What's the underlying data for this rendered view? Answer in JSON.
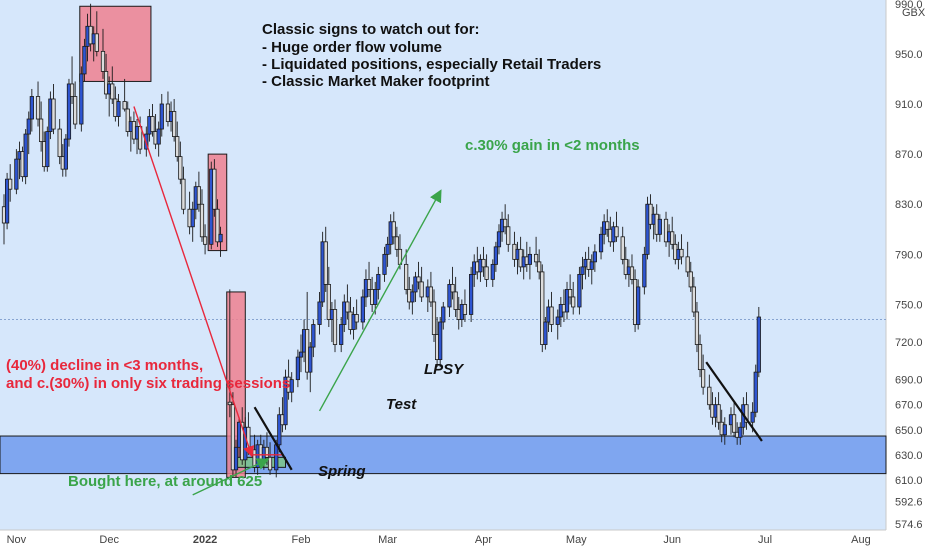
{
  "chart_data": {
    "type": "candlestick",
    "unit": "GBX",
    "ylim": [
      570,
      993
    ],
    "y_ticks": [
      "990.0",
      "950.0",
      "910.0",
      "870.0",
      "830.0",
      "790.0",
      "750.0",
      "720.0",
      "690.0",
      "670.0",
      "650.0",
      "630.0",
      "610.0",
      "592.6",
      "574.6"
    ],
    "x_ticks": [
      {
        "label": "Nov",
        "d": 4
      },
      {
        "label": "Dec",
        "d": 34
      },
      {
        "label": "2022",
        "d": 65
      },
      {
        "label": "Feb",
        "d": 96
      },
      {
        "label": "Mar",
        "d": 124
      },
      {
        "label": "Apr",
        "d": 155
      },
      {
        "label": "May",
        "d": 185
      },
      {
        "label": "Jun",
        "d": 216
      },
      {
        "label": "Jul",
        "d": 246
      },
      {
        "label": "Aug",
        "d": 277
      }
    ],
    "x_range": [
      0,
      278
    ],
    "price_line": 738,
    "support_zone": [
      615,
      645
    ],
    "colors": {
      "up": "#2e55d1",
      "down": "#dcdcdc",
      "bg": "#d6e7fb",
      "zone": "#7fa6f0",
      "box": "#ee808f",
      "green_box": "#7cc487",
      "red": "#e8283c",
      "green": "#3aa44a"
    },
    "candles": [
      [
        0,
        828,
        838,
        798,
        815
      ],
      [
        1,
        815,
        855,
        810,
        850
      ],
      [
        2,
        850,
        862,
        832,
        842
      ],
      [
        4,
        842,
        874,
        838,
        866
      ],
      [
        5,
        866,
        880,
        850,
        872
      ],
      [
        6,
        872,
        876,
        848,
        852
      ],
      [
        7,
        852,
        890,
        846,
        886
      ],
      [
        8,
        886,
        904,
        870,
        898
      ],
      [
        9,
        898,
        922,
        888,
        916
      ],
      [
        11,
        916,
        928,
        892,
        898
      ],
      [
        12,
        898,
        912,
        872,
        880
      ],
      [
        13,
        880,
        888,
        856,
        860
      ],
      [
        14,
        860,
        892,
        856,
        888
      ],
      [
        15,
        888,
        920,
        882,
        914
      ],
      [
        16,
        914,
        926,
        886,
        890
      ],
      [
        18,
        890,
        898,
        862,
        868
      ],
      [
        19,
        868,
        878,
        852,
        858
      ],
      [
        20,
        858,
        886,
        852,
        882
      ],
      [
        21,
        882,
        930,
        876,
        926
      ],
      [
        22,
        926,
        948,
        910,
        916
      ],
      [
        23,
        916,
        928,
        890,
        894
      ],
      [
        25,
        894,
        940,
        888,
        934
      ],
      [
        26,
        934,
        962,
        928,
        956
      ],
      [
        27,
        956,
        982,
        944,
        972
      ],
      [
        28,
        972,
        990,
        952,
        958
      ],
      [
        29,
        958,
        972,
        944,
        966
      ],
      [
        30,
        966,
        984,
        948,
        952
      ],
      [
        32,
        952,
        970,
        930,
        936
      ],
      [
        33,
        936,
        950,
        914,
        918
      ],
      [
        34,
        918,
        932,
        900,
        926
      ],
      [
        35,
        926,
        940,
        910,
        914
      ],
      [
        36,
        914,
        924,
        896,
        900
      ],
      [
        37,
        900,
        918,
        892,
        912
      ],
      [
        39,
        912,
        930,
        904,
        906
      ],
      [
        40,
        906,
        912,
        884,
        888
      ],
      [
        41,
        888,
        900,
        872,
        896
      ],
      [
        42,
        896,
        904,
        878,
        882
      ],
      [
        43,
        882,
        898,
        870,
        892
      ],
      [
        44,
        892,
        900,
        870,
        874
      ],
      [
        46,
        874,
        892,
        868,
        886
      ],
      [
        47,
        886,
        906,
        880,
        900
      ],
      [
        48,
        900,
        910,
        884,
        888
      ],
      [
        49,
        888,
        902,
        874,
        878
      ],
      [
        50,
        878,
        896,
        868,
        890
      ],
      [
        51,
        890,
        918,
        884,
        910
      ],
      [
        53,
        910,
        920,
        892,
        896
      ],
      [
        54,
        896,
        912,
        888,
        904
      ],
      [
        55,
        904,
        914,
        880,
        884
      ],
      [
        56,
        884,
        896,
        864,
        868
      ],
      [
        57,
        868,
        880,
        846,
        850
      ],
      [
        58,
        850,
        860,
        822,
        826
      ],
      [
        60,
        826,
        840,
        806,
        812
      ],
      [
        61,
        812,
        832,
        800,
        826
      ],
      [
        62,
        826,
        848,
        818,
        844
      ],
      [
        63,
        844,
        856,
        824,
        830
      ],
      [
        64,
        830,
        842,
        800,
        804
      ],
      [
        65,
        804,
        814,
        790,
        798
      ],
      [
        67,
        798,
        864,
        794,
        858
      ],
      [
        68,
        858,
        866,
        820,
        826
      ],
      [
        69,
        826,
        834,
        796,
        800
      ],
      [
        70,
        800,
        812,
        788,
        806
      ],
      [
        73,
        672,
        762,
        660,
        670
      ],
      [
        74,
        670,
        680,
        612,
        618
      ],
      [
        75,
        618,
        642,
        612,
        636
      ],
      [
        76,
        636,
        660,
        628,
        656
      ],
      [
        77,
        656,
        668,
        622,
        626
      ],
      [
        78,
        626,
        660,
        620,
        652
      ],
      [
        79,
        652,
        664,
        630,
        634
      ],
      [
        81,
        634,
        646,
        616,
        620
      ],
      [
        82,
        620,
        642,
        614,
        638
      ],
      [
        83,
        638,
        646,
        620,
        624
      ],
      [
        84,
        624,
        642,
        618,
        636
      ],
      [
        85,
        636,
        648,
        622,
        628
      ],
      [
        86,
        628,
        640,
        614,
        618
      ],
      [
        88,
        618,
        642,
        612,
        638
      ],
      [
        89,
        638,
        668,
        632,
        662
      ],
      [
        90,
        662,
        676,
        648,
        654
      ],
      [
        91,
        654,
        698,
        650,
        692
      ],
      [
        92,
        692,
        706,
        674,
        680
      ],
      [
        93,
        680,
        696,
        672,
        690
      ],
      [
        95,
        690,
        714,
        684,
        708
      ],
      [
        96,
        708,
        726,
        696,
        712
      ],
      [
        97,
        712,
        738,
        704,
        730
      ],
      [
        98,
        730,
        760,
        690,
        696
      ],
      [
        99,
        696,
        720,
        680,
        716
      ],
      [
        100,
        716,
        738,
        708,
        734
      ],
      [
        102,
        734,
        760,
        726,
        752
      ],
      [
        103,
        752,
        808,
        748,
        800
      ],
      [
        104,
        800,
        812,
        760,
        766
      ],
      [
        105,
        766,
        780,
        732,
        738
      ],
      [
        106,
        738,
        752,
        720,
        746
      ],
      [
        107,
        746,
        754,
        712,
        718
      ],
      [
        109,
        718,
        740,
        712,
        734
      ],
      [
        110,
        734,
        758,
        728,
        752
      ],
      [
        111,
        752,
        766,
        738,
        744
      ],
      [
        112,
        744,
        756,
        726,
        730
      ],
      [
        113,
        730,
        748,
        722,
        742
      ],
      [
        114,
        742,
        754,
        730,
        736
      ],
      [
        116,
        736,
        762,
        730,
        756
      ],
      [
        117,
        756,
        778,
        748,
        770
      ],
      [
        118,
        770,
        784,
        756,
        762
      ],
      [
        119,
        762,
        772,
        744,
        750
      ],
      [
        120,
        750,
        768,
        742,
        762
      ],
      [
        121,
        762,
        780,
        754,
        774
      ],
      [
        123,
        774,
        796,
        768,
        790
      ],
      [
        124,
        790,
        804,
        780,
        798
      ],
      [
        125,
        798,
        822,
        790,
        816
      ],
      [
        126,
        816,
        824,
        798,
        804
      ],
      [
        127,
        804,
        812,
        788,
        794
      ],
      [
        128,
        794,
        806,
        778,
        782
      ],
      [
        130,
        782,
        794,
        758,
        762
      ],
      [
        131,
        762,
        772,
        746,
        752
      ],
      [
        132,
        752,
        766,
        742,
        760
      ],
      [
        133,
        760,
        776,
        752,
        772
      ],
      [
        134,
        772,
        784,
        762,
        768
      ],
      [
        135,
        768,
        780,
        752,
        756
      ],
      [
        137,
        756,
        770,
        744,
        764
      ],
      [
        138,
        764,
        776,
        748,
        752
      ],
      [
        139,
        752,
        762,
        720,
        726
      ],
      [
        140,
        726,
        740,
        700,
        706
      ],
      [
        141,
        706,
        740,
        700,
        736
      ],
      [
        142,
        736,
        752,
        730,
        748
      ],
      [
        144,
        748,
        770,
        740,
        766
      ],
      [
        145,
        766,
        780,
        754,
        760
      ],
      [
        146,
        760,
        772,
        740,
        746
      ],
      [
        147,
        746,
        756,
        730,
        738
      ],
      [
        148,
        738,
        754,
        732,
        750
      ],
      [
        149,
        750,
        762,
        736,
        742
      ],
      [
        151,
        742,
        780,
        736,
        774
      ],
      [
        152,
        774,
        790,
        764,
        784
      ],
      [
        153,
        784,
        796,
        770,
        776
      ],
      [
        154,
        776,
        790,
        768,
        786
      ],
      [
        155,
        786,
        796,
        772,
        780
      ],
      [
        156,
        780,
        790,
        764,
        770
      ],
      [
        158,
        770,
        786,
        764,
        782
      ],
      [
        159,
        782,
        800,
        776,
        796
      ],
      [
        160,
        796,
        814,
        790,
        808
      ],
      [
        161,
        808,
        824,
        800,
        818
      ],
      [
        162,
        818,
        830,
        806,
        812
      ],
      [
        163,
        812,
        822,
        792,
        798
      ],
      [
        165,
        798,
        808,
        780,
        786
      ],
      [
        166,
        786,
        800,
        774,
        794
      ],
      [
        167,
        794,
        804,
        776,
        780
      ],
      [
        168,
        780,
        794,
        770,
        788
      ],
      [
        169,
        788,
        800,
        776,
        782
      ],
      [
        170,
        782,
        796,
        770,
        790
      ],
      [
        172,
        790,
        804,
        780,
        784
      ],
      [
        173,
        784,
        794,
        770,
        776
      ],
      [
        174,
        776,
        782,
        712,
        718
      ],
      [
        175,
        718,
        740,
        714,
        736
      ],
      [
        176,
        736,
        754,
        728,
        748
      ],
      [
        177,
        748,
        760,
        728,
        734
      ],
      [
        179,
        734,
        746,
        722,
        740
      ],
      [
        180,
        740,
        756,
        732,
        750
      ],
      [
        181,
        750,
        762,
        736,
        744
      ],
      [
        182,
        744,
        768,
        738,
        762
      ],
      [
        183,
        762,
        774,
        750,
        756
      ],
      [
        184,
        756,
        768,
        742,
        748
      ],
      [
        186,
        748,
        780,
        742,
        774
      ],
      [
        187,
        774,
        788,
        762,
        780
      ],
      [
        188,
        780,
        792,
        770,
        786
      ],
      [
        189,
        786,
        796,
        772,
        778
      ],
      [
        190,
        778,
        790,
        766,
        784
      ],
      [
        191,
        784,
        798,
        776,
        792
      ],
      [
        193,
        792,
        812,
        786,
        806
      ],
      [
        194,
        806,
        822,
        798,
        816
      ],
      [
        195,
        816,
        826,
        804,
        810
      ],
      [
        196,
        810,
        820,
        796,
        800
      ],
      [
        197,
        800,
        816,
        792,
        812
      ],
      [
        198,
        812,
        824,
        800,
        804
      ],
      [
        200,
        804,
        812,
        782,
        786
      ],
      [
        201,
        786,
        796,
        770,
        774
      ],
      [
        202,
        774,
        786,
        764,
        780
      ],
      [
        203,
        780,
        790,
        766,
        770
      ],
      [
        204,
        770,
        778,
        728,
        734
      ],
      [
        205,
        734,
        770,
        730,
        764
      ],
      [
        207,
        764,
        796,
        758,
        790
      ],
      [
        208,
        790,
        836,
        786,
        830
      ],
      [
        209,
        830,
        838,
        810,
        814
      ],
      [
        210,
        814,
        828,
        802,
        822
      ],
      [
        211,
        822,
        830,
        800,
        806
      ],
      [
        212,
        806,
        822,
        800,
        818
      ],
      [
        214,
        818,
        824,
        796,
        800
      ],
      [
        215,
        800,
        814,
        788,
        808
      ],
      [
        216,
        808,
        820,
        794,
        798
      ],
      [
        217,
        798,
        806,
        782,
        786
      ],
      [
        218,
        786,
        800,
        778,
        794
      ],
      [
        219,
        794,
        806,
        782,
        788
      ],
      [
        221,
        788,
        800,
        772,
        776
      ],
      [
        222,
        776,
        784,
        760,
        764
      ],
      [
        223,
        764,
        772,
        740,
        744
      ],
      [
        224,
        744,
        752,
        712,
        718
      ],
      [
        225,
        718,
        726,
        692,
        698
      ],
      [
        226,
        698,
        710,
        678,
        684
      ],
      [
        228,
        684,
        694,
        666,
        670
      ],
      [
        229,
        670,
        680,
        654,
        660
      ],
      [
        230,
        660,
        676,
        652,
        670
      ],
      [
        231,
        670,
        680,
        650,
        656
      ],
      [
        232,
        656,
        666,
        640,
        646
      ],
      [
        233,
        646,
        660,
        638,
        654
      ],
      [
        235,
        654,
        668,
        646,
        662
      ],
      [
        236,
        662,
        672,
        644,
        648
      ],
      [
        237,
        648,
        656,
        638,
        644
      ],
      [
        238,
        644,
        656,
        638,
        652
      ],
      [
        239,
        652,
        676,
        646,
        670
      ],
      [
        240,
        670,
        680,
        650,
        656
      ],
      [
        242,
        656,
        672,
        648,
        664
      ],
      [
        243,
        664,
        702,
        660,
        696
      ],
      [
        244,
        696,
        748,
        692,
        740
      ]
    ],
    "annotations": {
      "notes_title": "Classic signs to watch out for:",
      "notes": [
        "- Huge order flow volume",
        "- Liquidated positions, especially Retail Traders",
        "- Classic Market Maker footprint"
      ],
      "decline": [
        "(40%) decline in <3 months,",
        "and c.(30%) in only six trading sessions"
      ],
      "bought": "Bought here, at around 625",
      "gain": "c.30% gain in <2 months",
      "spring": "Spring",
      "test": "Test",
      "lpsy": "LPSY"
    }
  }
}
